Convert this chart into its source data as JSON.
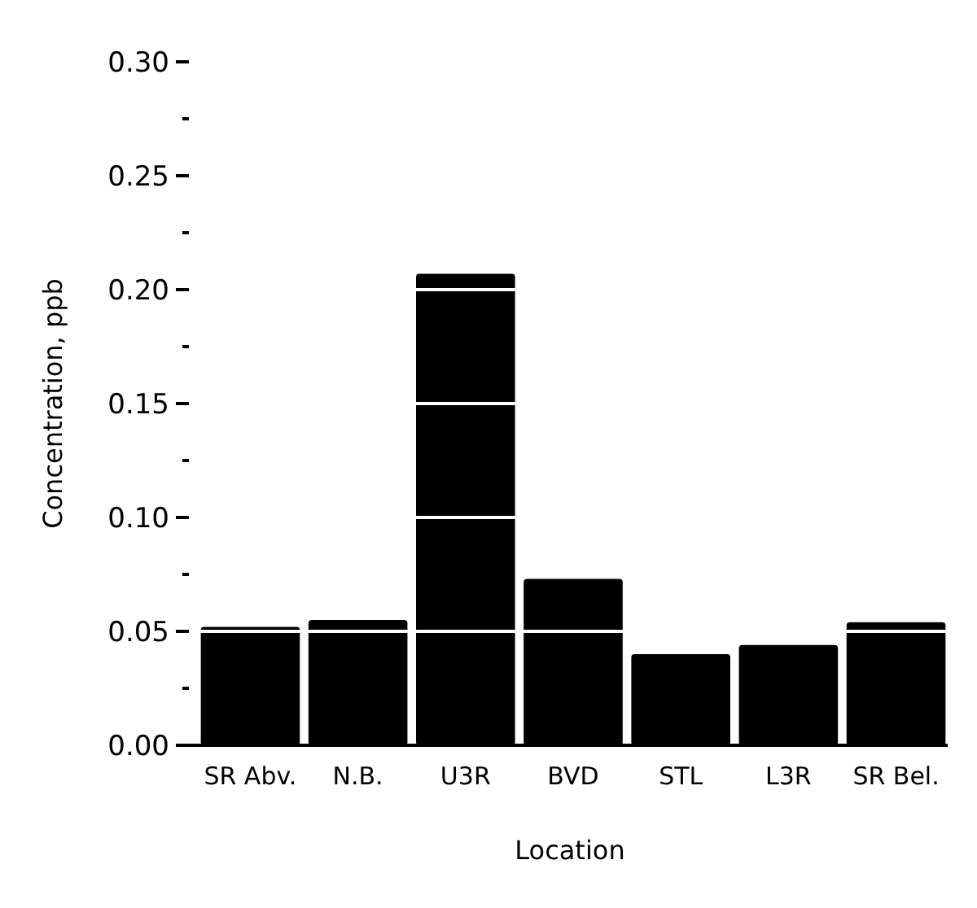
{
  "chart_data": {
    "type": "bar",
    "xlabel": "Location",
    "ylabel": "Concentration, ppb",
    "categories": [
      "SR Abv.",
      "N.B.",
      "U3R",
      "BVD",
      "STL",
      "L3R",
      "SR Bel."
    ],
    "values": [
      0.052,
      0.055,
      0.207,
      0.073,
      0.04,
      0.044,
      0.054
    ],
    "color": "#000000",
    "ylim": [
      0,
      0.3
    ],
    "yticks": [
      {
        "value": 0,
        "label": "0.00"
      },
      {
        "value": 0.025,
        "label": null
      },
      0.05,
      {
        "value": 0.075,
        "label": null
      },
      {
        "value": 0.1,
        "label": "0.10"
      },
      {
        "value": 0.125,
        "label": null
      },
      0.15,
      {
        "value": 0.175,
        "label": null
      },
      {
        "value": 0.2,
        "label": "0.20"
      },
      {
        "value": 0.225,
        "label": null
      },
      0.25,
      {
        "value": 0.275,
        "label": null
      },
      {
        "value": 0.3,
        "label": "0.30"
      }
    ],
    "grid": "y"
  }
}
